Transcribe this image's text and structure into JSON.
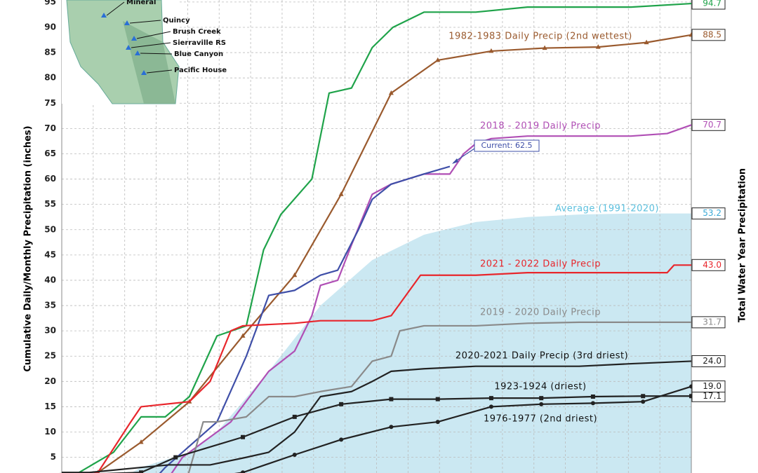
{
  "chart_data": {
    "type": "line",
    "y_label": "Cumulative Daily/Monthly Precipitation (inches)",
    "y2_label": "Total Water Year Precipitation",
    "xlim": [
      0,
      365
    ],
    "ylim": [
      1.9,
      95.4
    ],
    "yticks": [
      5,
      10,
      15,
      20,
      25,
      30,
      35,
      40,
      45,
      50,
      55,
      60,
      65,
      70,
      75,
      80,
      85,
      90,
      95
    ],
    "grid": true,
    "series": [
      {
        "name": "Average (1991-2020)",
        "color": "#5bc0de",
        "fill": "#cbe8f2",
        "kind": "area",
        "x": [
          30,
          46,
          74,
          90,
          120,
          150,
          180,
          210,
          240,
          270,
          300,
          330,
          365
        ],
        "values": [
          0,
          3,
          6,
          10,
          22,
          35,
          44,
          49,
          51.5,
          52.5,
          53,
          53.2,
          53.2
        ],
        "value_labels": [
          null,
          null,
          null,
          null,
          null,
          null,
          null,
          null,
          null,
          null,
          null,
          null,
          "53.2"
        ]
      },
      {
        "color": "#1fa34a",
        "x": [
          0,
          30,
          46,
          60,
          74,
          90,
          107,
          117,
          127,
          145,
          155,
          168,
          180,
          192,
          210,
          240,
          270,
          300,
          330,
          365
        ],
        "values": [
          0,
          6,
          13,
          13,
          17,
          29,
          31,
          46,
          53,
          60,
          77,
          78,
          86,
          90,
          93,
          93,
          94,
          94,
          94,
          94.7
        ],
        "value_labels": [
          null,
          null,
          null,
          null,
          null,
          null,
          null,
          null,
          null,
          null,
          null,
          null,
          null,
          null,
          null,
          null,
          null,
          null,
          null,
          "94.7"
        ]
      },
      {
        "name": "1982-1983 Daily Precip (2nd wettest)",
        "color": "#9a5a2e",
        "marker": "triangle",
        "x": [
          0,
          21,
          46,
          74,
          105,
          135,
          162,
          191,
          218,
          249,
          280,
          311,
          339,
          365
        ],
        "values": [
          0,
          2,
          8,
          16,
          29,
          41,
          57,
          77,
          83.5,
          85.3,
          85.9,
          86.1,
          87,
          88.5
        ],
        "value_labels": [
          null,
          null,
          null,
          null,
          null,
          null,
          null,
          null,
          null,
          null,
          null,
          null,
          null,
          "88.5"
        ]
      },
      {
        "name": "2018 - 2019 Daily Precip",
        "color": "#b04fb5",
        "x": [
          60,
          70,
          90,
          98,
          120,
          135,
          145,
          150,
          160,
          168,
          180,
          191,
          210,
          225,
          233,
          240,
          249,
          270,
          300,
          330,
          351,
          365
        ],
        "values": [
          0,
          5,
          10,
          12,
          22,
          26,
          33,
          39,
          40,
          47,
          57,
          59,
          61,
          61,
          65,
          67,
          68,
          68.5,
          68.5,
          68.5,
          69,
          70.7
        ],
        "value_labels": [
          null,
          null,
          null,
          null,
          null,
          null,
          null,
          null,
          null,
          null,
          null,
          null,
          null,
          null,
          null,
          null,
          null,
          null,
          null,
          null,
          null,
          "70.7"
        ]
      },
      {
        "color": "#3f4fa8",
        "x": [
          52,
          60,
          90,
          107,
          120,
          135,
          150,
          160,
          172,
          180,
          191,
          210,
          225
        ],
        "values": [
          0,
          3,
          12,
          25,
          37,
          38,
          41,
          42,
          50,
          56,
          59,
          61,
          62.5
        ]
      },
      {
        "name": "2021 - 2022 Daily Precip",
        "color": "#e8262c",
        "x": [
          0,
          21,
          40,
          46,
          74,
          86,
          98,
          105,
          135,
          150,
          180,
          191,
          208,
          240,
          270,
          330,
          351,
          355,
          365
        ],
        "values": [
          0,
          2,
          12,
          15,
          16,
          20,
          30,
          31,
          31.5,
          32,
          32,
          33,
          41,
          41,
          41.5,
          41.5,
          41.5,
          43,
          43
        ],
        "value_labels": [
          null,
          null,
          null,
          null,
          null,
          null,
          null,
          null,
          null,
          null,
          null,
          null,
          null,
          null,
          null,
          null,
          null,
          null,
          "43.0"
        ]
      },
      {
        "name": "2019 - 2020 Daily Precip",
        "color": "#8a8a8a",
        "x": [
          72,
          82,
          90,
          107,
          120,
          135,
          150,
          168,
          180,
          191,
          196,
          210,
          240,
          270,
          300,
          365
        ],
        "values": [
          0,
          12,
          12,
          13,
          17,
          17,
          18,
          19,
          24,
          25,
          30,
          31,
          31,
          31.5,
          31.7,
          31.7
        ],
        "value_labels": [
          null,
          null,
          null,
          null,
          null,
          null,
          null,
          null,
          null,
          null,
          null,
          null,
          null,
          null,
          null,
          "31.7"
        ]
      },
      {
        "name": "2020-2021 Daily Precip (3rd driest)",
        "color": "#222222",
        "x": [
          0,
          16,
          46,
          62,
          86,
          107,
          120,
          135,
          150,
          168,
          180,
          191,
          210,
          240,
          270,
          300,
          330,
          365
        ],
        "values": [
          2,
          2,
          3,
          3.5,
          3.5,
          5,
          6,
          10,
          17,
          18,
          20,
          22,
          22.5,
          23,
          23,
          23,
          23.5,
          24
        ],
        "value_labels": [
          null,
          null,
          null,
          null,
          null,
          null,
          null,
          null,
          null,
          null,
          null,
          null,
          null,
          null,
          null,
          null,
          null,
          "24.0"
        ]
      },
      {
        "name": "1923-1924 (driest)",
        "color": "#222222",
        "marker": "square",
        "x": [
          0,
          46,
          66,
          105,
          135,
          162,
          191,
          218,
          249,
          278,
          308,
          337,
          365
        ],
        "values": [
          1.5,
          2,
          5,
          9,
          13,
          15.5,
          16.5,
          16.5,
          16.7,
          16.7,
          17,
          17.1,
          17.1
        ],
        "value_labels": [
          null,
          null,
          null,
          null,
          null,
          null,
          null,
          null,
          null,
          null,
          null,
          null,
          "17.1"
        ]
      },
      {
        "name": "1976-1977 (2nd driest)",
        "color": "#222222",
        "marker": "circle",
        "x": [
          0,
          66,
          105,
          135,
          162,
          191,
          218,
          249,
          278,
          308,
          337,
          365
        ],
        "values": [
          0,
          0,
          2,
          5.5,
          8.5,
          11,
          12,
          15,
          15.5,
          15.7,
          16,
          19
        ],
        "value_labels": [
          null,
          null,
          null,
          null,
          null,
          null,
          null,
          null,
          null,
          null,
          null,
          "19.0"
        ]
      }
    ],
    "annotations": [
      {
        "text": "Current: 62.5",
        "color": "#3f4fa8"
      }
    ],
    "inset": {
      "stations": [
        "Mineral",
        "Quincy",
        "Brush Creek",
        "Sierraville RS",
        "Blue Canyon",
        "Pacific House"
      ]
    }
  }
}
